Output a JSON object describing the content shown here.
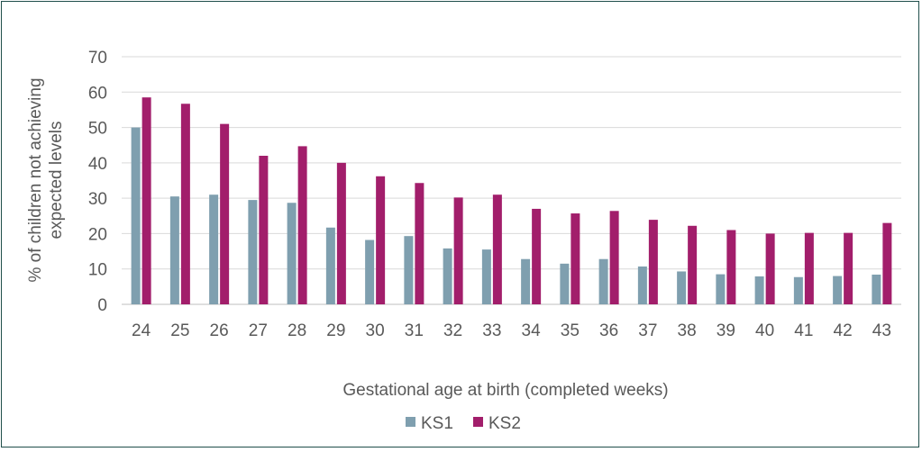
{
  "chart_data": {
    "type": "bar",
    "categories": [
      "24",
      "25",
      "26",
      "27",
      "28",
      "29",
      "30",
      "31",
      "32",
      "33",
      "34",
      "35",
      "36",
      "37",
      "38",
      "39",
      "40",
      "41",
      "42",
      "43"
    ],
    "series": [
      {
        "name": "KS1",
        "color": "#7f9faf",
        "values": [
          50,
          30.5,
          31,
          29.5,
          28.7,
          21.7,
          18.2,
          19.3,
          15.8,
          15.5,
          12.8,
          11.5,
          12.8,
          10.7,
          9.3,
          8.5,
          7.9,
          7.7,
          8,
          8.4
        ]
      },
      {
        "name": "KS2",
        "color": "#a21e6b",
        "values": [
          58.5,
          56.7,
          51,
          42,
          44.7,
          40,
          36.2,
          34.3,
          30.2,
          31,
          27,
          25.7,
          26.4,
          23.9,
          22.2,
          21,
          20,
          20.2,
          20.2,
          23
        ]
      }
    ],
    "title": "",
    "xlabel": "Gestational age at birth (completed weeks)",
    "ylabel": [
      "% of children not achieving",
      "expected levels"
    ],
    "ylim": [
      0,
      70
    ],
    "yticks": [
      0,
      10,
      20,
      30,
      40,
      50,
      60,
      70
    ],
    "grid": true,
    "legend": "bottom-center"
  }
}
